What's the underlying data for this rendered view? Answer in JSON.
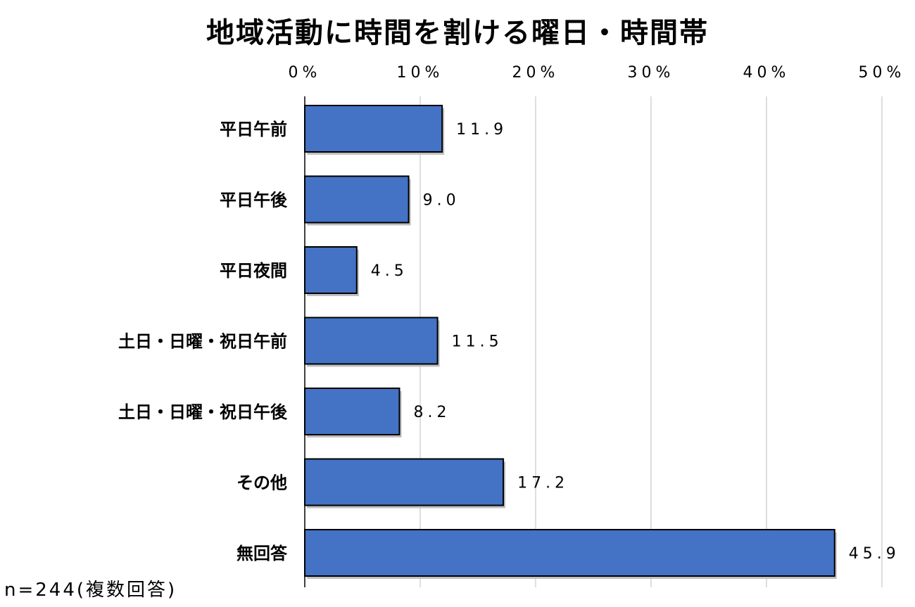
{
  "chart_data": {
    "type": "bar",
    "orientation": "horizontal",
    "title": "地域活動に時間を割ける曜日・時間帯",
    "categories": [
      "平日午前",
      "平日午後",
      "平日夜間",
      "土日・日曜・祝日午前",
      "土日・日曜・祝日午後",
      "その他",
      "無回答"
    ],
    "values": [
      11.9,
      9.0,
      4.5,
      11.5,
      8.2,
      17.2,
      45.9
    ],
    "value_labels": [
      "11.9",
      "9.0",
      "4.5",
      "11.5",
      "8.2",
      "17.2",
      "45.9"
    ],
    "xlim": [
      0,
      50
    ],
    "ticks": [
      0,
      10,
      20,
      30,
      40,
      50
    ],
    "tick_labels": [
      "0%",
      "10%",
      "20%",
      "30%",
      "40%",
      "50%"
    ],
    "tick_position": "top",
    "grid": true,
    "legend": "none",
    "note": "n=244(複数回答)",
    "bar_color": "#4472C4"
  }
}
